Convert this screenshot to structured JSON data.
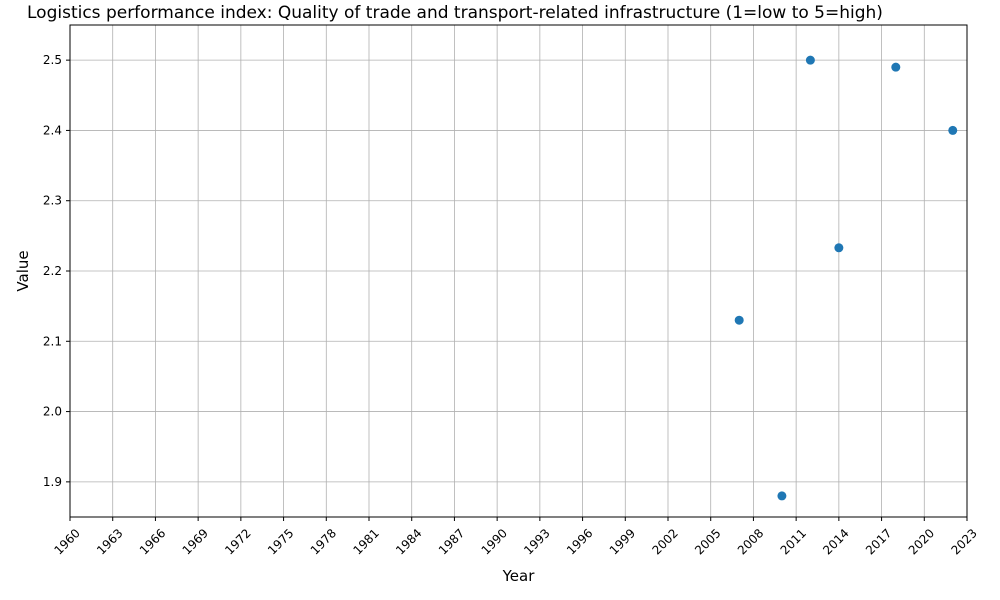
{
  "chart_data": {
    "type": "scatter",
    "title": "Logistics performance index: Quality of trade and transport-related infrastructure (1=low to 5=high)",
    "xlabel": "Year",
    "ylabel": "Value",
    "xlim": [
      1960,
      2023
    ],
    "ylim": [
      1.85,
      2.55
    ],
    "xticks": [
      1960,
      1963,
      1966,
      1969,
      1972,
      1975,
      1978,
      1981,
      1984,
      1987,
      1990,
      1993,
      1996,
      1999,
      2002,
      2005,
      2008,
      2011,
      2014,
      2017,
      2020,
      2023
    ],
    "yticks": [
      1.9,
      2.0,
      2.1,
      2.2,
      2.3,
      2.4,
      2.5
    ],
    "grid": true,
    "marker_color": "#1f77b4",
    "points": [
      {
        "x": 2007,
        "y": 2.13
      },
      {
        "x": 2010,
        "y": 1.88
      },
      {
        "x": 2012,
        "y": 2.5
      },
      {
        "x": 2014,
        "y": 2.233
      },
      {
        "x": 2018,
        "y": 2.49
      },
      {
        "x": 2022,
        "y": 2.4
      }
    ]
  }
}
